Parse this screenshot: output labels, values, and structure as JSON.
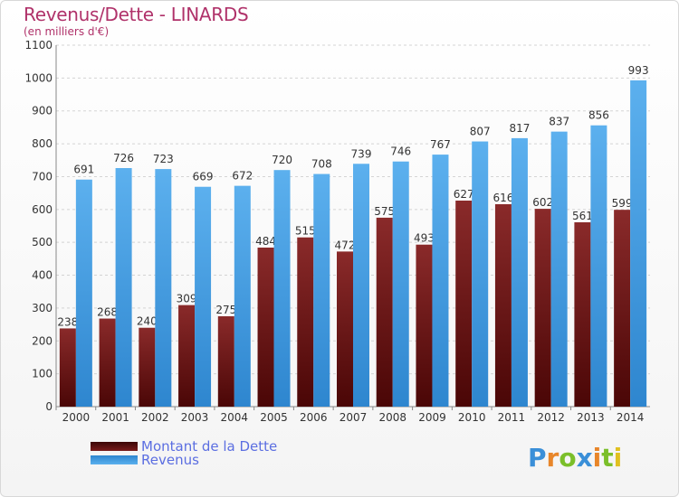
{
  "title": "Revenus/Dette - LINARDS",
  "subtitle": "(en milliers d'€)",
  "logo_text": "Proxiti",
  "colors": {
    "dette": "#7a1c1c",
    "revenus": "#4aa3e6",
    "title": "#b0326a",
    "legend_text": "#5b6ee1"
  },
  "chart_data": {
    "type": "bar",
    "title": "Revenus/Dette - LINARDS",
    "subtitle": "(en milliers d'€)",
    "categories": [
      "2000",
      "2001",
      "2002",
      "2003",
      "2004",
      "2005",
      "2006",
      "2007",
      "2008",
      "2009",
      "2010",
      "2011",
      "2012",
      "2013",
      "2014"
    ],
    "series": [
      {
        "name": "Montant de la Dette",
        "values": [
          238,
          268,
          240,
          309,
          275,
          484,
          515,
          472,
          575,
          493,
          627,
          616,
          602,
          561,
          599
        ]
      },
      {
        "name": "Revenus",
        "values": [
          691,
          726,
          723,
          669,
          672,
          720,
          708,
          739,
          746,
          767,
          807,
          817,
          837,
          856,
          993
        ]
      }
    ],
    "ylim": [
      0,
      1100
    ],
    "yticks": [
      0,
      100,
      200,
      300,
      400,
      500,
      600,
      700,
      800,
      900,
      1000,
      1100
    ],
    "grid": true,
    "legend_position": "bottom-left"
  }
}
